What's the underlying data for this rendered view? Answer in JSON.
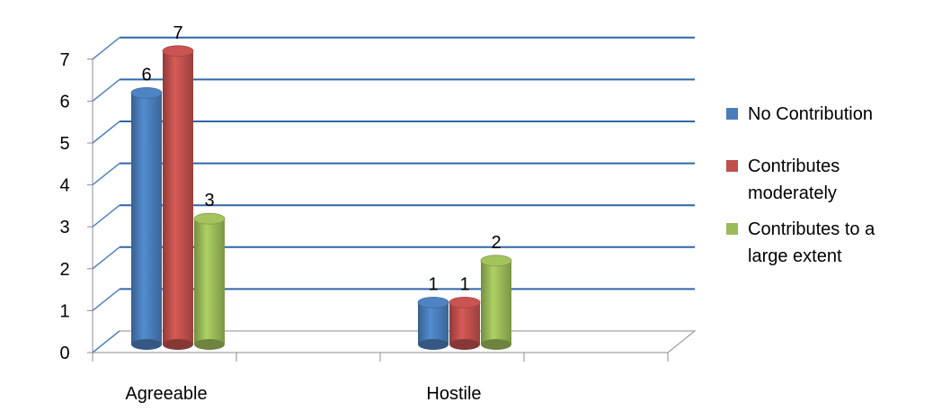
{
  "chart_data": {
    "type": "bar",
    "categories": [
      "Agreeable",
      "Hostile"
    ],
    "series": [
      {
        "name": "No Contribution",
        "values": [
          6,
          1
        ],
        "color": "#4a7ebb"
      },
      {
        "name": "Contributes moderately",
        "values": [
          7,
          1
        ],
        "color": "#c0504d"
      },
      {
        "name": "Contributes to a large extent",
        "values": [
          3,
          2
        ],
        "color": "#9bbb59"
      }
    ],
    "yticks": [
      "0",
      "1",
      "2",
      "3",
      "4",
      "5",
      "6",
      "7"
    ],
    "ylim": [
      0,
      7
    ],
    "grid": true,
    "legend_position": "right",
    "style": "3d clustered column"
  },
  "legend": {
    "items": [
      {
        "label_lines": [
          "No Contribution"
        ],
        "color": "#4a7ebb"
      },
      {
        "label_lines": [
          "Contributes",
          "moderately"
        ],
        "color": "#c0504d"
      },
      {
        "label_lines": [
          "Contributes to a",
          "large extent"
        ],
        "color": "#9bbb59"
      }
    ]
  }
}
